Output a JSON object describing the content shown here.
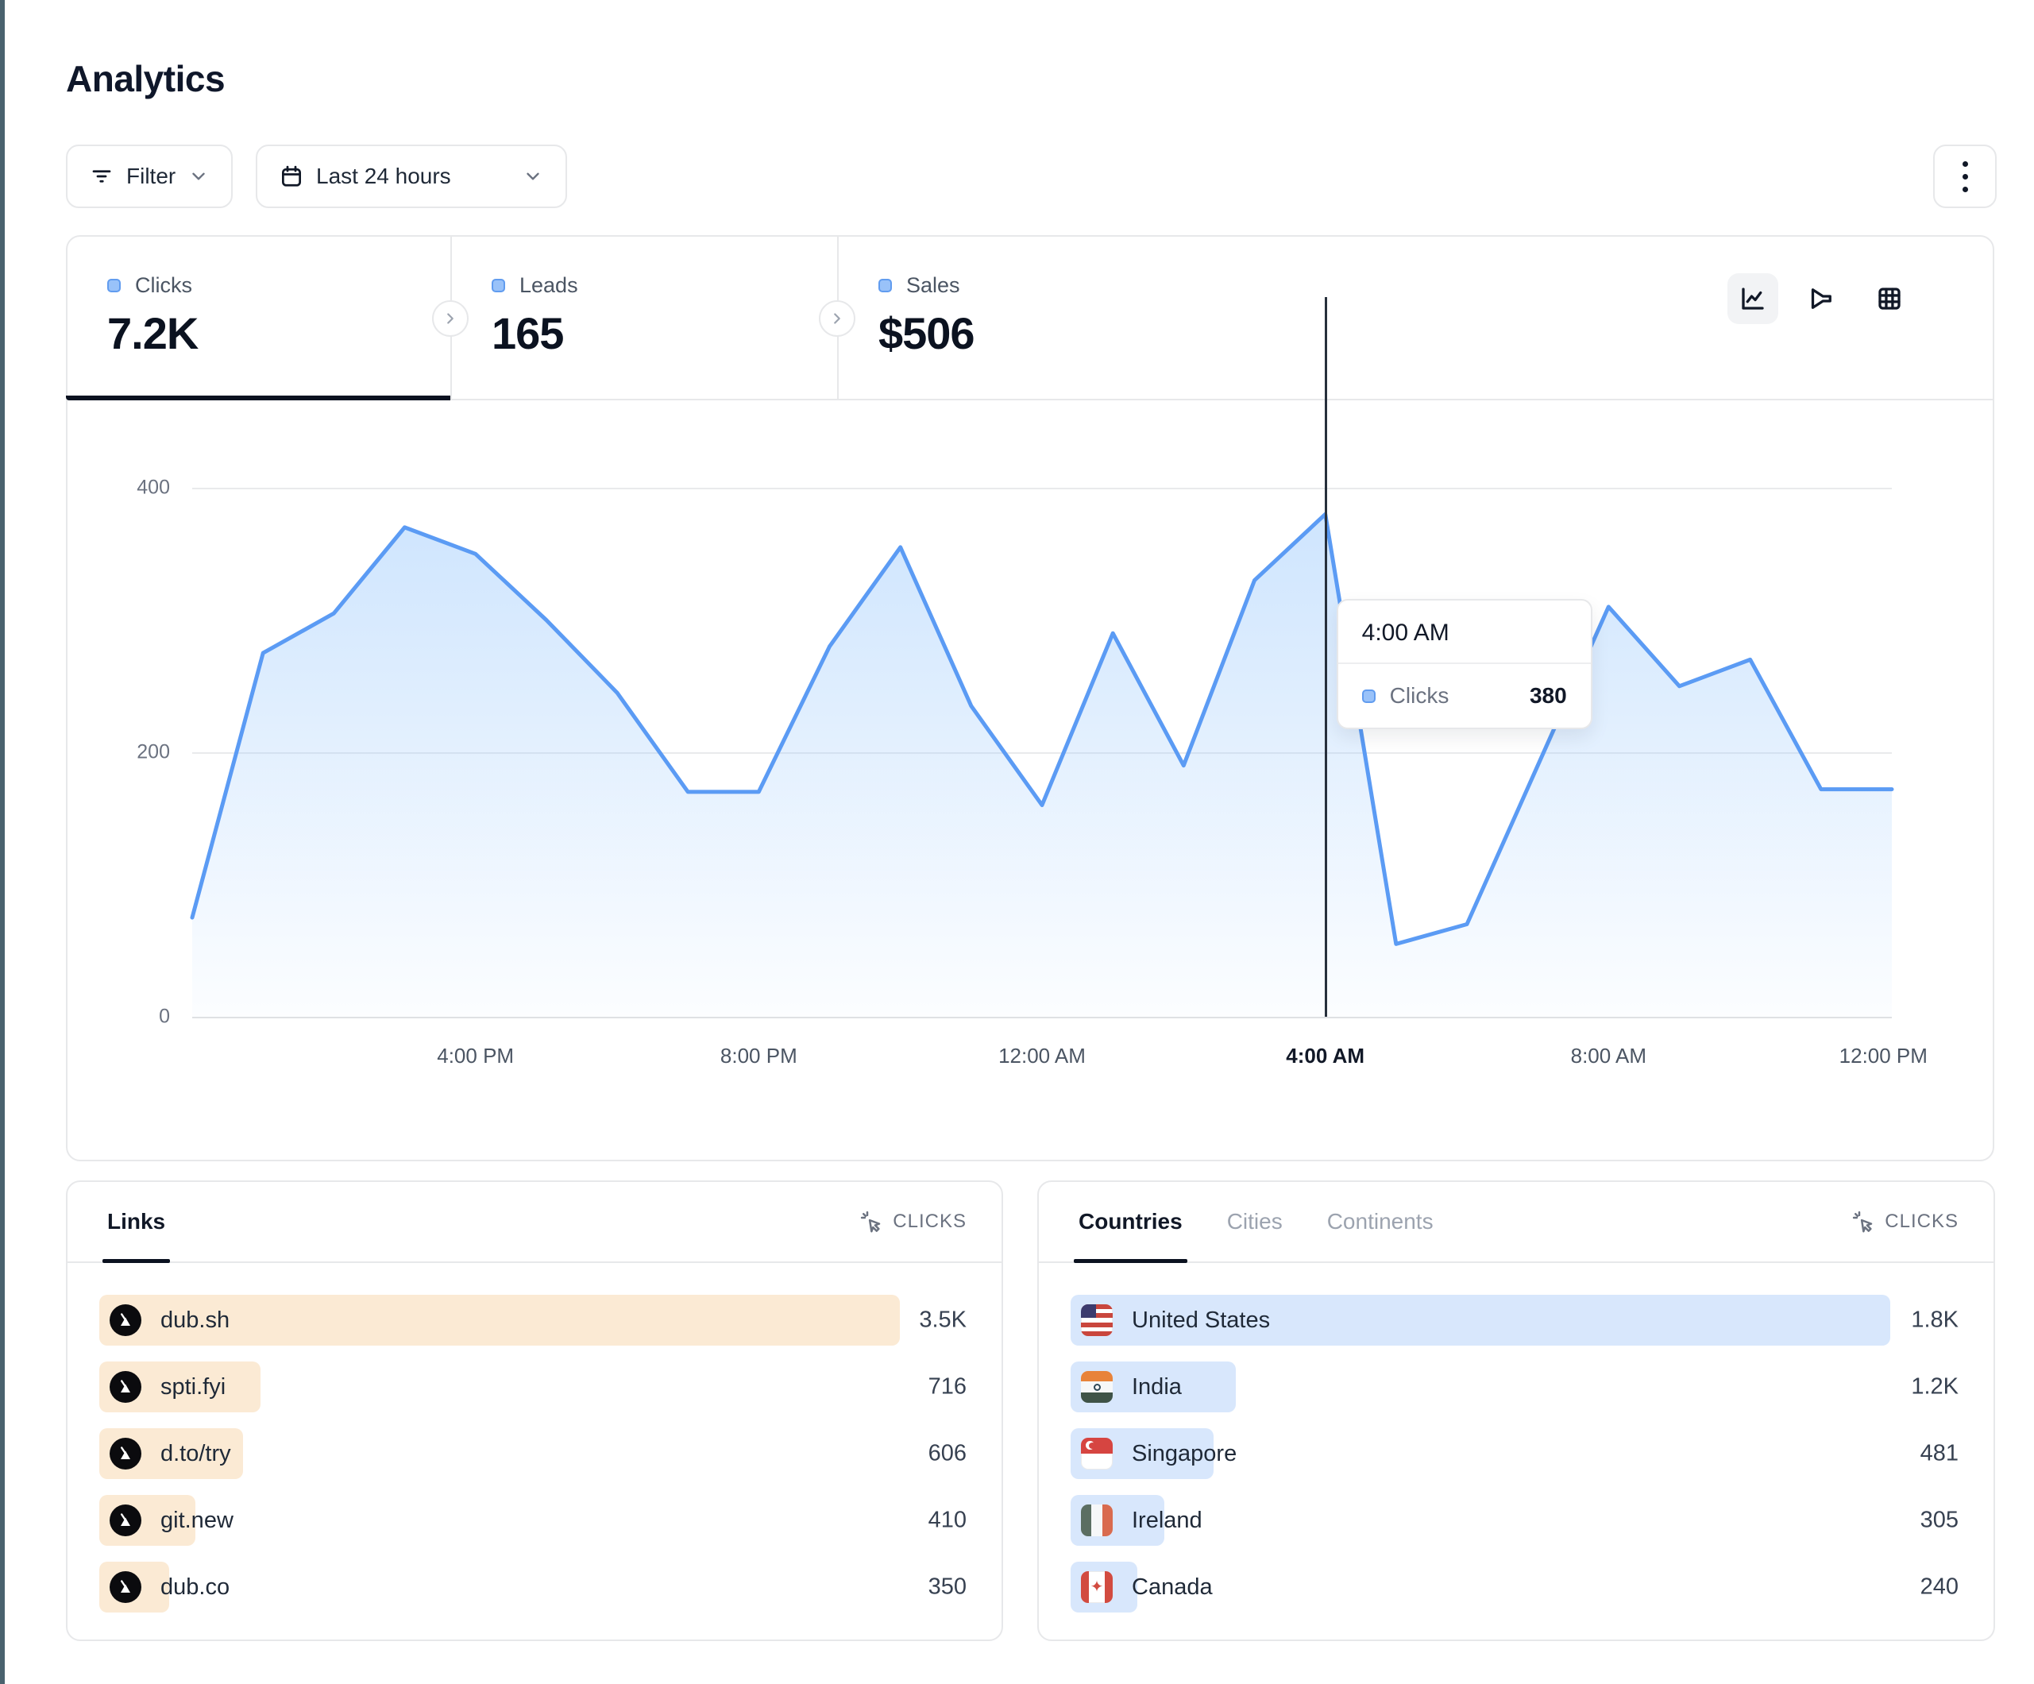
{
  "page": {
    "title": "Analytics"
  },
  "toolbar": {
    "filter_label": "Filter",
    "date_range_label": "Last 24 hours"
  },
  "stats": {
    "cards": [
      {
        "label": "Clicks",
        "value": "7.2K"
      },
      {
        "label": "Leads",
        "value": "165"
      },
      {
        "label": "Sales",
        "value": "$506"
      }
    ]
  },
  "chart": {
    "y_ticks": [
      "400",
      "200",
      "0"
    ],
    "x_ticks": [
      "4:00 PM",
      "8:00 PM",
      "12:00 AM",
      "4:00 AM",
      "8:00 AM",
      "12:00 PM"
    ],
    "tooltip": {
      "time": "4:00 AM",
      "metric": "Clicks",
      "value": "380"
    }
  },
  "chart_data": {
    "type": "area",
    "series_name": "Clicks",
    "x": [
      "12:00 PM",
      "1:00 PM",
      "2:00 PM",
      "3:00 PM",
      "4:00 PM",
      "5:00 PM",
      "6:00 PM",
      "7:00 PM",
      "8:00 PM",
      "9:00 PM",
      "10:00 PM",
      "11:00 PM",
      "12:00 AM",
      "1:00 AM",
      "2:00 AM",
      "3:00 AM",
      "4:00 AM",
      "5:00 AM",
      "6:00 AM",
      "7:00 AM",
      "8:00 AM",
      "9:00 AM",
      "10:00 AM",
      "11:00 AM",
      "12:00 PM"
    ],
    "values": [
      75,
      275,
      305,
      370,
      350,
      300,
      245,
      170,
      170,
      280,
      355,
      235,
      160,
      290,
      190,
      330,
      380,
      55,
      70,
      190,
      310,
      250,
      270,
      172,
      172
    ],
    "ylim": [
      0,
      400
    ],
    "y_tick_labels": [
      "0",
      "200",
      "400"
    ],
    "x_tick_labels_shown": [
      "4:00 PM",
      "8:00 PM",
      "12:00 AM",
      "4:00 AM",
      "8:00 AM",
      "12:00 PM"
    ],
    "grid": "horizontal",
    "highlight": {
      "x": "4:00 AM",
      "value": 380
    },
    "line_color": "#5B9BF4",
    "area_color": "#BFDBFA"
  },
  "links_panel": {
    "tab_label": "Links",
    "metric_header": "CLICKS",
    "rows": [
      {
        "label": "dub.sh",
        "value": "3.5K",
        "bar_pct": 92
      },
      {
        "label": "spti.fyi",
        "value": "716",
        "bar_pct": 18.5
      },
      {
        "label": "d.to/try",
        "value": "606",
        "bar_pct": 16.5
      },
      {
        "label": "git.new",
        "value": "410",
        "bar_pct": 11
      },
      {
        "label": "dub.co",
        "value": "350",
        "bar_pct": 8
      }
    ]
  },
  "geo_panel": {
    "tabs": [
      {
        "label": "Countries"
      },
      {
        "label": "Cities"
      },
      {
        "label": "Continents"
      }
    ],
    "active_tab": "Countries",
    "metric_header": "CLICKS",
    "rows": [
      {
        "label": "United States",
        "value": "1.8K",
        "bar_pct": 92,
        "flag": "us"
      },
      {
        "label": "India",
        "value": "1.2K",
        "bar_pct": 18.5,
        "flag": "in"
      },
      {
        "label": "Singapore",
        "value": "481",
        "bar_pct": 16,
        "flag": "sg"
      },
      {
        "label": "Ireland",
        "value": "305",
        "bar_pct": 10.5,
        "flag": "ie"
      },
      {
        "label": "Canada",
        "value": "240",
        "bar_pct": 7.5,
        "flag": "ca"
      }
    ]
  },
  "colors": {
    "accent_blue": "#5B9BF4",
    "bar_peach": "#FBEAD4",
    "bar_blue": "#D8E7FC",
    "border": "#E7E8EA",
    "edge_strip": "#4A626E"
  }
}
